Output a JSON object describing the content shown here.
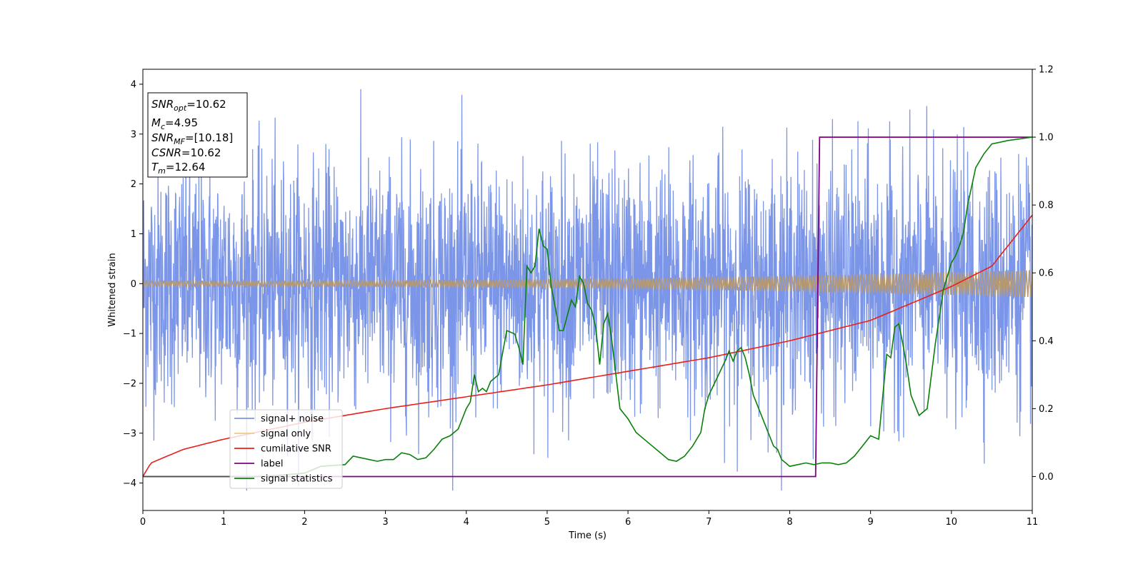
{
  "chart_data": {
    "type": "line",
    "xlabel": "Time (s)",
    "ylabel_left": "Whitened strain",
    "ylabel_right": "",
    "xlim": [
      0,
      11
    ],
    "ylim_left": [
      -4.55,
      4.3
    ],
    "ylim_right": [
      -0.1,
      1.2
    ],
    "x_ticks": [
      0,
      1,
      2,
      3,
      4,
      5,
      6,
      7,
      8,
      9,
      10,
      11
    ],
    "y_ticks_left": [
      -4,
      -3,
      -2,
      -1,
      0,
      1,
      2,
      3,
      4
    ],
    "y_ticks_right": [
      0.0,
      0.2,
      0.4,
      0.6,
      0.8,
      1.0,
      1.2
    ],
    "y_ticks_left_labels": [
      "−4",
      "−3",
      "−2",
      "−1",
      "0",
      "1",
      "2",
      "3",
      "4"
    ],
    "y_ticks_right_labels": [
      "0.0",
      "0.2",
      "0.4",
      "0.6",
      "0.8",
      "1.0",
      "1.2"
    ],
    "grid": false,
    "legend_placement": "lower-left",
    "colors": {
      "noise": "#7b95e8",
      "signal": "#f5c88a",
      "signal_overlap": "#b89a70",
      "cumulative_snr": "#e8201c",
      "label": "#800080",
      "statistics": "#0a800a"
    },
    "info_box": [
      {
        "base": "SNR",
        "sub": "opt",
        "rest": "=10.62"
      },
      {
        "base": "M",
        "sub": "c",
        "rest": "=4.95"
      },
      {
        "base": "SNR",
        "sub": "MF",
        "rest": "=[10.18]"
      },
      {
        "base": "CSNR",
        "sub": "",
        "rest": "=10.62"
      },
      {
        "base": "T",
        "sub": "m",
        "rest": "=12.64"
      }
    ],
    "series": [
      {
        "name": "signal+ noise",
        "axis": "left",
        "description_envelope": {
          "typical_amplitude": 1.2,
          "max_peak": 3.9,
          "min_peak": -4.15
        }
      },
      {
        "name": "signal only",
        "axis": "left",
        "amplitude_start": 0.06,
        "amplitude_end": 0.27
      },
      {
        "name": "cumilative SNR",
        "axis": "right",
        "x": [
          0,
          0.1,
          0.5,
          1,
          2,
          3,
          4,
          5,
          6,
          7,
          8,
          9,
          10,
          10.5,
          11
        ],
        "y": [
          0.0,
          0.04,
          0.08,
          0.11,
          0.16,
          0.2,
          0.235,
          0.27,
          0.31,
          0.35,
          0.4,
          0.46,
          0.56,
          0.62,
          0.77
        ]
      },
      {
        "name": "label",
        "axis": "right",
        "x": [
          0,
          8.32,
          8.37,
          11
        ],
        "y": [
          0,
          0,
          1,
          1
        ]
      },
      {
        "name": "signal statistics",
        "axis": "right",
        "x": [
          0,
          0.5,
          1,
          1.5,
          2,
          2.2,
          2.5,
          2.6,
          2.7,
          2.8,
          2.9,
          3.0,
          3.1,
          3.2,
          3.3,
          3.4,
          3.5,
          3.6,
          3.7,
          3.8,
          3.9,
          4.0,
          4.05,
          4.1,
          4.15,
          4.2,
          4.25,
          4.3,
          4.4,
          4.5,
          4.6,
          4.65,
          4.7,
          4.75,
          4.8,
          4.85,
          4.9,
          4.95,
          5.0,
          5.05,
          5.1,
          5.15,
          5.2,
          5.3,
          5.35,
          5.4,
          5.45,
          5.5,
          5.55,
          5.6,
          5.65,
          5.7,
          5.75,
          5.8,
          5.9,
          6.0,
          6.1,
          6.2,
          6.3,
          6.4,
          6.5,
          6.6,
          6.7,
          6.8,
          6.9,
          6.95,
          7.0,
          7.1,
          7.2,
          7.25,
          7.3,
          7.35,
          7.4,
          7.45,
          7.5,
          7.55,
          7.6,
          7.7,
          7.8,
          7.85,
          7.9,
          7.95,
          8.0,
          8.1,
          8.2,
          8.3,
          8.4,
          8.5,
          8.6,
          8.7,
          8.8,
          8.9,
          9.0,
          9.1,
          9.2,
          9.25,
          9.3,
          9.35,
          9.4,
          9.45,
          9.5,
          9.6,
          9.7,
          9.8,
          9.9,
          10.0,
          10.05,
          10.1,
          10.15,
          10.2,
          10.3,
          10.4,
          10.5,
          10.7,
          11
        ],
        "y": [
          0.0,
          0.0,
          0.0,
          0.0,
          0.01,
          0.03,
          0.035,
          0.06,
          0.055,
          0.05,
          0.045,
          0.05,
          0.05,
          0.07,
          0.065,
          0.05,
          0.055,
          0.08,
          0.11,
          0.12,
          0.14,
          0.2,
          0.22,
          0.3,
          0.25,
          0.26,
          0.25,
          0.28,
          0.3,
          0.43,
          0.42,
          0.38,
          0.33,
          0.62,
          0.6,
          0.62,
          0.73,
          0.68,
          0.67,
          0.56,
          0.5,
          0.43,
          0.43,
          0.52,
          0.5,
          0.59,
          0.57,
          0.51,
          0.49,
          0.44,
          0.33,
          0.45,
          0.48,
          0.4,
          0.2,
          0.17,
          0.13,
          0.11,
          0.09,
          0.07,
          0.05,
          0.045,
          0.06,
          0.09,
          0.13,
          0.2,
          0.24,
          0.29,
          0.34,
          0.37,
          0.34,
          0.37,
          0.38,
          0.35,
          0.3,
          0.24,
          0.21,
          0.15,
          0.09,
          0.08,
          0.05,
          0.04,
          0.03,
          0.035,
          0.04,
          0.035,
          0.04,
          0.04,
          0.035,
          0.04,
          0.06,
          0.09,
          0.12,
          0.11,
          0.36,
          0.35,
          0.44,
          0.45,
          0.39,
          0.32,
          0.24,
          0.18,
          0.2,
          0.39,
          0.55,
          0.63,
          0.65,
          0.68,
          0.72,
          0.8,
          0.91,
          0.95,
          0.98,
          0.99,
          1.0
        ]
      }
    ],
    "legend": [
      "signal+ noise",
      "signal only",
      "cumilative SNR",
      "label",
      "signal statistics"
    ]
  }
}
